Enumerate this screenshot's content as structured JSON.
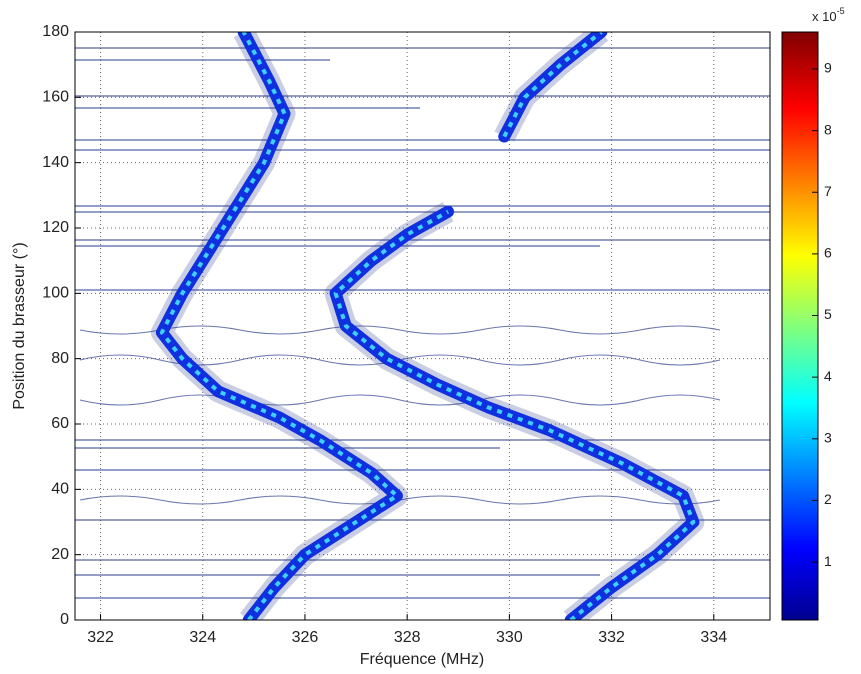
{
  "chart_data": {
    "type": "contour",
    "xlabel": "Fréquence (MHz)",
    "ylabel": "Position du brasseur (°)",
    "xlim": [
      321.5,
      335.1
    ],
    "ylim": [
      0,
      180
    ],
    "xticks": [
      322,
      324,
      326,
      328,
      330,
      332,
      334
    ],
    "yticks": [
      0,
      20,
      40,
      60,
      80,
      100,
      120,
      140,
      160,
      180
    ],
    "grid": true,
    "clim": [
      0.06,
      9.6
    ],
    "cticks": [
      1,
      2,
      3,
      4,
      5,
      6,
      7,
      8,
      9
    ],
    "colorbar_label": "x 10",
    "colorbar_exponent": "-5",
    "series": [
      {
        "color": "#1030e0",
        "x": [
          324.9,
          325.4,
          326.0,
          327.0,
          327.8,
          327.3,
          326.3,
          325.5,
          324.3,
          323.6,
          323.2,
          323.6,
          324.2,
          324.6,
          325.2,
          325.6,
          325.3,
          324.8
        ],
        "y": [
          0,
          10,
          20,
          30,
          38,
          45,
          55,
          62,
          70,
          80,
          88,
          100,
          115,
          125,
          140,
          155,
          165,
          180
        ]
      },
      {
        "color": "#1030e0",
        "x": [
          331.2,
          332.0,
          332.9,
          333.6,
          333.4,
          332.2,
          330.8,
          329.6,
          328.6,
          327.6,
          326.8,
          326.6,
          327.3,
          328.0,
          328.8
        ],
        "y": [
          0,
          10,
          20,
          30,
          38,
          48,
          58,
          65,
          72,
          80,
          90,
          100,
          110,
          118,
          125
        ]
      },
      {
        "color": "#1030e0",
        "x": [
          329.9,
          330.3,
          331.0,
          331.8
        ],
        "y": [
          148,
          160,
          170,
          180
        ]
      }
    ]
  }
}
